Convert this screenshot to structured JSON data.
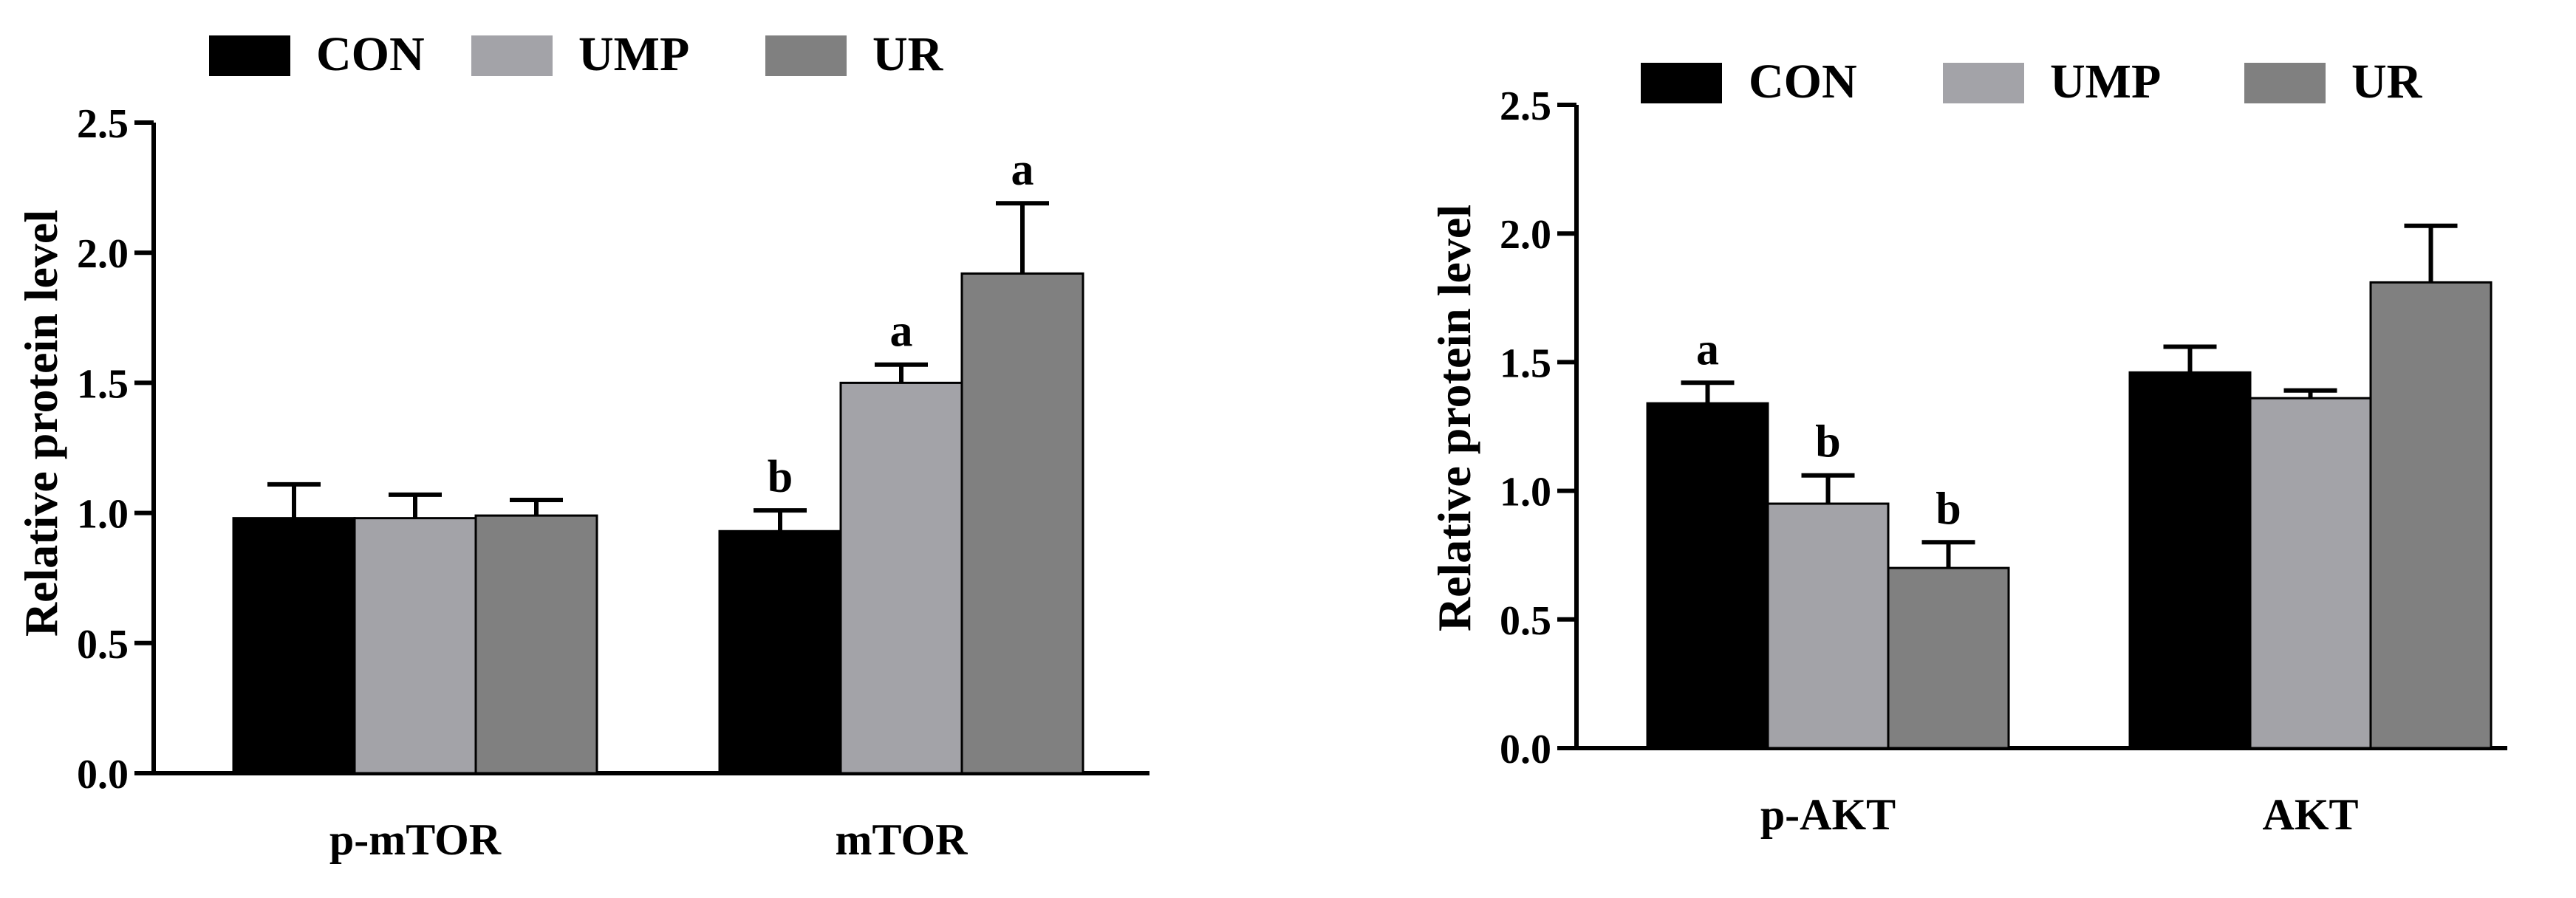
{
  "chart_data": [
    {
      "type": "bar",
      "ylabel": "Relative protein level",
      "ylim": [
        0,
        2.5
      ],
      "yticks": [
        "0.0",
        "0.5",
        "1.0",
        "1.5",
        "2.0",
        "2.5"
      ],
      "categories": [
        "p-mTOR",
        "mTOR"
      ],
      "legend": {
        "placement": "top"
      },
      "series": [
        {
          "name": "CON",
          "color": "#000000",
          "values": [
            0.98,
            0.93
          ],
          "errors": [
            0.13,
            0.08
          ],
          "labels": [
            "",
            "b"
          ]
        },
        {
          "name": "UMP",
          "color": "#a3a3a8",
          "values": [
            0.98,
            1.5
          ],
          "errors": [
            0.09,
            0.07
          ],
          "labels": [
            "",
            "a"
          ]
        },
        {
          "name": "UR",
          "color": "#808080",
          "values": [
            0.99,
            1.92
          ],
          "errors": [
            0.06,
            0.27
          ],
          "labels": [
            "",
            "a"
          ]
        }
      ]
    },
    {
      "type": "bar",
      "ylabel": "Relative protein level",
      "ylim": [
        0,
        2.5
      ],
      "yticks": [
        "0.0",
        "0.5",
        "1.0",
        "1.5",
        "2.0",
        "2.5"
      ],
      "categories": [
        "p-AKT",
        "AKT"
      ],
      "legend": {
        "placement": "top"
      },
      "series": [
        {
          "name": "CON",
          "color": "#000000",
          "values": [
            1.34,
            1.46
          ],
          "errors": [
            0.08,
            0.1
          ],
          "labels": [
            "a",
            ""
          ]
        },
        {
          "name": "UMP",
          "color": "#a3a3a8",
          "values": [
            0.95,
            1.36
          ],
          "errors": [
            0.11,
            0.03
          ],
          "labels": [
            "b",
            ""
          ]
        },
        {
          "name": "UR",
          "color": "#808080",
          "values": [
            0.7,
            1.81
          ],
          "errors": [
            0.1,
            0.22
          ],
          "labels": [
            "b",
            ""
          ]
        }
      ]
    }
  ]
}
